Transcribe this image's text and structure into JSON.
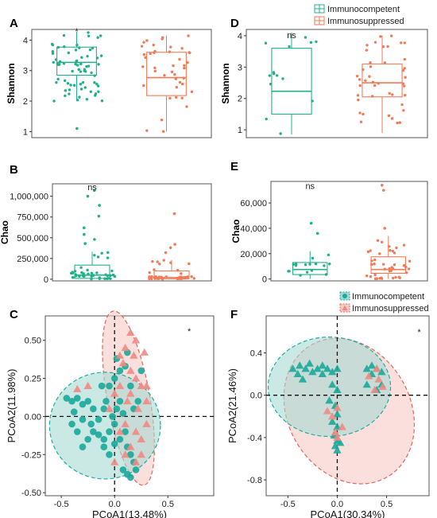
{
  "colors": {
    "immunocompetent": "#21b08a",
    "immunosuppressed": "#f37a57",
    "pcoa_competent_fill": "#a6d8d2",
    "pcoa_competent_line": "#1ab0a3",
    "pcoa_competent_pt": "#1aa99a",
    "pcoa_suppressed_fill": "#f6c9c5",
    "pcoa_suppressed_line": "#e8635c",
    "pcoa_suppressed_pt": "#ef8a83"
  },
  "chart_data": [
    {
      "id": "A",
      "panel_label": "A",
      "type": "box",
      "ylabel": "Shannon",
      "ylim": [
        0.8,
        4.35
      ],
      "yticks": [
        1,
        2,
        3,
        4
      ],
      "yticklabels": [
        "1",
        "2",
        "3",
        "4"
      ],
      "annotation": "*",
      "annotation_group": 0,
      "annotation_y": 4.3,
      "groups": [
        {
          "name": "Immunocompetent",
          "q1": 2.85,
          "median": 3.27,
          "q3": 3.77,
          "whisker_low": 2.0,
          "whisker_high": 4.28,
          "outliers": [
            1.1
          ]
        },
        {
          "name": "Immunosuppressed",
          "q1": 2.18,
          "median": 2.77,
          "q3": 3.6,
          "whisker_low": 1.0,
          "whisker_high": 4.15,
          "outliers": []
        }
      ]
    },
    {
      "id": "B",
      "panel_label": "B",
      "type": "box",
      "ylabel": "Chao",
      "ylim": [
        -20000,
        1150000
      ],
      "yticks": [
        0,
        250000,
        500000,
        750000,
        1000000
      ],
      "yticklabels": [
        "0",
        "250,000",
        "500,000",
        "750,000",
        "1,000,000"
      ],
      "annotation": "ns",
      "annotation_group": 0,
      "annotation_y": 1110000,
      "groups": [
        {
          "name": "Immunocompetent",
          "q1": 10000,
          "median": 50000,
          "q3": 170000,
          "whisker_low": 0,
          "whisker_high": 330000,
          "outliers": [
            1070000,
            1000000,
            890000,
            760000,
            620000,
            540000,
            480000,
            430000
          ]
        },
        {
          "name": "Immunosuppressed",
          "q1": 5000,
          "median": 20000,
          "q3": 100000,
          "whisker_low": 0,
          "whisker_high": 230000,
          "outliers": [
            790000,
            420000,
            380000,
            320000
          ]
        }
      ]
    },
    {
      "id": "D",
      "panel_label": "D",
      "type": "box",
      "ylabel": "Shannon",
      "ylim": [
        0.75,
        4.2
      ],
      "yticks": [
        1,
        2,
        3,
        4
      ],
      "yticklabels": [
        "1",
        "2",
        "3",
        "4"
      ],
      "annotation": "ns",
      "annotation_group": 0,
      "annotation_y": 4.02,
      "groups": [
        {
          "name": "Immunocompetent",
          "q1": 1.5,
          "median": 2.23,
          "q3": 3.6,
          "whisker_low": 0.85,
          "whisker_high": 4.1,
          "outliers": []
        },
        {
          "name": "Immunosuppressed",
          "q1": 2.05,
          "median": 2.5,
          "q3": 3.1,
          "whisker_low": 0.9,
          "whisker_high": 4.0,
          "outliers": []
        }
      ]
    },
    {
      "id": "E",
      "panel_label": "E",
      "type": "box",
      "ylabel": "Chao",
      "ylim": [
        -1500,
        77000
      ],
      "yticks": [
        0,
        20000,
        40000,
        60000
      ],
      "yticklabels": [
        "0",
        "20,000",
        "40,000",
        "60,000"
      ],
      "annotation": "ns",
      "annotation_group": 0,
      "annotation_y": 73500,
      "groups": [
        {
          "name": "Immunocompetent",
          "q1": 3500,
          "median": 7500,
          "q3": 13000,
          "whisker_low": 0,
          "whisker_high": 22000,
          "outliers": [
            44000,
            36000
          ]
        },
        {
          "name": "Immunosuppressed",
          "q1": 4500,
          "median": 7500,
          "q3": 17500,
          "whisker_low": 0,
          "whisker_high": 34000,
          "outliers": [
            74000,
            70000,
            40000
          ]
        }
      ]
    },
    {
      "id": "C",
      "panel_label": "C",
      "type": "scatter",
      "xlabel": "PCoA1(13.48%)",
      "ylabel": "PCoA2(11.98%)",
      "xlim": [
        -0.65,
        0.93
      ],
      "ylim": [
        -0.52,
        0.66
      ],
      "xticks": [
        -0.5,
        0,
        0.5
      ],
      "xticklabels": [
        "-0.5",
        "0.0",
        "0.5"
      ],
      "yticks": [
        -0.5,
        -0.25,
        0,
        0.25,
        0.5
      ],
      "yticklabels": [
        "-0.50",
        "-0.25",
        "0.00",
        "0.25",
        "0.50"
      ],
      "annotation": "*",
      "annotation_xy": [
        0.7,
        0.56
      ],
      "ellipses": [
        {
          "group": "Immunocompetent",
          "cx": -0.09,
          "cy": -0.06,
          "rx": 0.52,
          "ry": 0.35,
          "angle": 0
        },
        {
          "group": "Immunosuppressed",
          "cx": 0.13,
          "cy": 0.12,
          "rx": 0.2,
          "ry": 0.58,
          "angle": 10
        }
      ],
      "series": [
        {
          "name": "Immunocompetent",
          "shape": "circle",
          "points": [
            [
              -0.45,
              0.12
            ],
            [
              -0.4,
              0.1
            ],
            [
              -0.35,
              0.12
            ],
            [
              -0.3,
              0.08
            ],
            [
              -0.25,
              0.1
            ],
            [
              -0.38,
              0.03
            ],
            [
              -0.3,
              -0.02
            ],
            [
              -0.22,
              -0.05
            ],
            [
              -0.15,
              -0.02
            ],
            [
              -0.1,
              0.05
            ],
            [
              -0.08,
              0.1
            ],
            [
              -0.05,
              0.2
            ],
            [
              0.0,
              0.25
            ],
            [
              0.05,
              0.3
            ],
            [
              0.1,
              0.33
            ],
            [
              0.12,
              0.42
            ],
            [
              0.05,
              0.1
            ],
            [
              0.02,
              0.05
            ],
            [
              -0.02,
              0.0
            ],
            [
              0.0,
              -0.05
            ],
            [
              -0.05,
              -0.1
            ],
            [
              -0.1,
              -0.15
            ],
            [
              -0.15,
              -0.12
            ],
            [
              -0.2,
              -0.1
            ],
            [
              -0.25,
              -0.15
            ],
            [
              -0.3,
              -0.2
            ],
            [
              -0.35,
              -0.1
            ],
            [
              -0.4,
              -0.05
            ],
            [
              -0.1,
              -0.2
            ],
            [
              -0.05,
              -0.25
            ],
            [
              0.0,
              -0.18
            ],
            [
              0.05,
              -0.15
            ],
            [
              0.1,
              -0.1
            ],
            [
              0.12,
              -0.2
            ],
            [
              0.15,
              -0.25
            ],
            [
              0.18,
              -0.3
            ],
            [
              0.08,
              -0.35
            ],
            [
              0.12,
              -0.38
            ],
            [
              0.15,
              -0.4
            ],
            [
              0.2,
              -0.35
            ],
            [
              0.22,
              0.1
            ],
            [
              0.25,
              0.3
            ],
            [
              0.15,
              0.2
            ],
            [
              0.18,
              0.05
            ],
            [
              -0.12,
              0.2
            ],
            [
              0.02,
              0.38
            ],
            [
              0.08,
              0.02
            ],
            [
              -0.2,
              0.05
            ]
          ]
        },
        {
          "name": "Immunosuppressed",
          "shape": "triangle",
          "points": [
            [
              0.15,
              0.55
            ],
            [
              0.2,
              0.5
            ],
            [
              0.1,
              0.45
            ],
            [
              0.05,
              0.4
            ],
            [
              0.08,
              0.35
            ],
            [
              0.15,
              0.3
            ],
            [
              0.2,
              0.25
            ],
            [
              0.25,
              0.2
            ],
            [
              0.3,
              0.1
            ],
            [
              0.22,
              0.05
            ],
            [
              0.15,
              0.15
            ],
            [
              0.05,
              0.2
            ],
            [
              0.0,
              0.15
            ],
            [
              -0.05,
              0.05
            ],
            [
              0.1,
              -0.05
            ],
            [
              0.2,
              -0.1
            ],
            [
              0.25,
              -0.15
            ],
            [
              0.15,
              -0.2
            ],
            [
              0.1,
              -0.25
            ],
            [
              0.2,
              -0.3
            ],
            [
              0.25,
              -0.25
            ],
            [
              0.3,
              -0.05
            ],
            [
              -0.35,
              0.18
            ],
            [
              -0.25,
              0.2
            ],
            [
              0.28,
              0.42
            ],
            [
              0.18,
              0.4
            ],
            [
              0.0,
              -0.3
            ],
            [
              0.05,
              -0.1
            ],
            [
              0.12,
              0.1
            ],
            [
              0.3,
              0.2
            ]
          ]
        }
      ]
    },
    {
      "id": "F",
      "panel_label": "F",
      "type": "scatter",
      "xlabel": "PCoA1(30.34%)",
      "ylabel": "PCoA2(21.46%)",
      "xlim": [
        -0.72,
        0.93
      ],
      "ylim": [
        -0.95,
        0.75
      ],
      "xticks": [
        -0.5,
        0,
        0.5
      ],
      "xticklabels": [
        "-0.5",
        "0.0",
        "0.5"
      ],
      "yticks": [
        -0.8,
        -0.4,
        0,
        0.4
      ],
      "yticklabels": [
        "-0.8",
        "-0.4",
        "0.0",
        "0.4"
      ],
      "annotation": "*",
      "annotation_xy": [
        0.83,
        0.6
      ],
      "ellipses": [
        {
          "group": "Immunocompetent",
          "cx": -0.08,
          "cy": 0.08,
          "rx": 0.62,
          "ry": 0.47,
          "angle": 0
        },
        {
          "group": "Immunosuppressed",
          "cx": 0.12,
          "cy": -0.15,
          "rx": 0.62,
          "ry": 0.72,
          "angle": 30
        }
      ],
      "series": [
        {
          "name": "Immunocompetent",
          "shape": "triangle",
          "points": [
            [
              -0.45,
              0.25
            ],
            [
              -0.38,
              0.28
            ],
            [
              -0.32,
              0.25
            ],
            [
              -0.28,
              0.3
            ],
            [
              -0.25,
              0.22
            ],
            [
              -0.2,
              0.25
            ],
            [
              -0.15,
              0.28
            ],
            [
              -0.1,
              0.25
            ],
            [
              -0.05,
              0.22
            ],
            [
              0.0,
              0.25
            ],
            [
              -0.4,
              0.2
            ],
            [
              -0.35,
              0.15
            ],
            [
              -0.05,
              0.1
            ],
            [
              0.0,
              0.05
            ],
            [
              -0.02,
              -0.1
            ],
            [
              0.0,
              -0.18
            ],
            [
              -0.05,
              -0.25
            ],
            [
              0.0,
              -0.3
            ],
            [
              -0.03,
              -0.38
            ],
            [
              0.0,
              -0.43
            ],
            [
              -0.02,
              -0.48
            ],
            [
              0.0,
              -0.52
            ],
            [
              0.3,
              0.25
            ],
            [
              0.35,
              0.28
            ],
            [
              0.4,
              0.25
            ],
            [
              0.45,
              0.22
            ],
            [
              0.35,
              0.2
            ],
            [
              0.3,
              0.1
            ],
            [
              0.4,
              0.05
            ],
            [
              0.45,
              0.1
            ],
            [
              -0.08,
              -0.05
            ],
            [
              -0.15,
              0.2
            ],
            [
              0.03,
              -0.45
            ]
          ]
        },
        {
          "name": "Immunosuppressed",
          "shape": "triangle",
          "points": [
            [
              -0.1,
              -0.15
            ],
            [
              -0.05,
              -0.2
            ],
            [
              0.0,
              -0.12
            ],
            [
              0.05,
              -0.3
            ],
            [
              -0.02,
              -0.35
            ],
            [
              0.0,
              -0.4
            ],
            [
              0.38,
              0.05
            ],
            [
              0.42,
              0.15
            ],
            [
              0.46,
              0.08
            ],
            [
              0.32,
              0.18
            ],
            [
              0.4,
              0.25
            ]
          ]
        }
      ]
    }
  ],
  "legends": {
    "top": {
      "items": [
        "Immunocompetent",
        "Immunosuppressed"
      ]
    },
    "pcoa": {
      "items": [
        "Immunocompetent",
        "Immunosuppressed"
      ]
    }
  }
}
